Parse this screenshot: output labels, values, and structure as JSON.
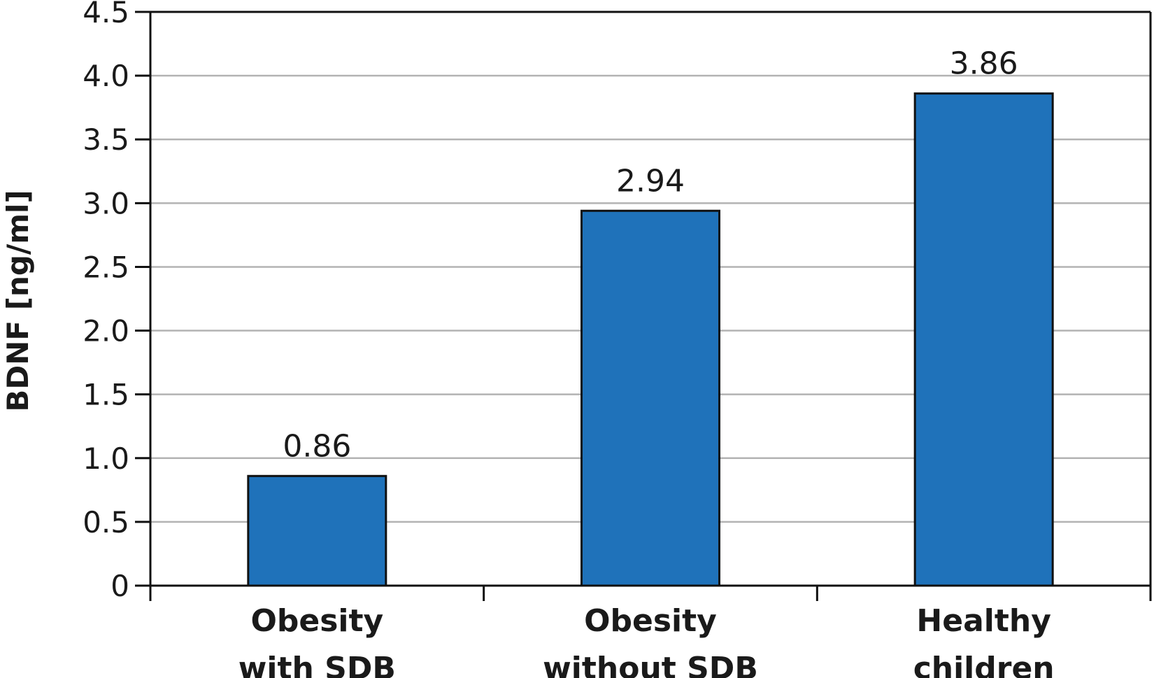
{
  "chart_data": {
    "type": "bar",
    "categories": [
      [
        "Obesity",
        "with SDB"
      ],
      [
        "Obesity",
        "without SDB"
      ],
      [
        "Healthy",
        "children"
      ]
    ],
    "values": [
      0.86,
      2.94,
      3.86
    ],
    "data_labels": [
      "0.86",
      "2.94",
      "3.86"
    ],
    "ylabel": "BDNF [ng/ml]",
    "ylim": [
      0,
      4.5
    ],
    "yticks": [
      0,
      0.5,
      1.0,
      1.5,
      2.0,
      2.5,
      3.0,
      3.5,
      4.0,
      4.5
    ],
    "ytick_labels": [
      "0",
      "0.5",
      "1.0",
      "1.5",
      "2.0",
      "2.5",
      "3.0",
      "3.5",
      "4.0",
      "4.5"
    ],
    "grid": true,
    "legend": "none",
    "colors": {
      "bar_fill": "#1f72ba",
      "bar_stroke": "#111111",
      "grid": "#b3b3b3",
      "axis": "#111111"
    }
  }
}
